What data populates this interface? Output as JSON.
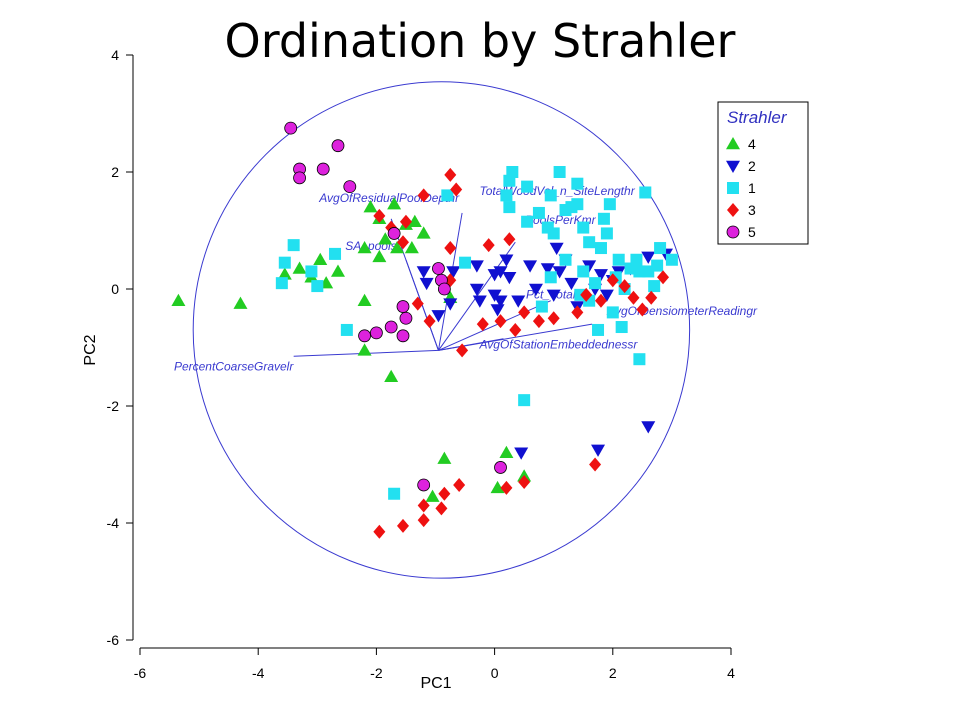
{
  "chart_data": {
    "type": "scatter",
    "title": "Ordination by Strahler",
    "xlabel": "PC1",
    "ylabel": "PC2",
    "xlim": [
      -6,
      4
    ],
    "ylim": [
      -6,
      4
    ],
    "x_ticks": [
      "-6",
      "-4",
      "-2",
      "0",
      "2",
      "4"
    ],
    "y_ticks": [
      "-6",
      "-4",
      "-2",
      "0",
      "2",
      "4"
    ],
    "grid": false,
    "legend": {
      "title": "Strahler",
      "position": "top-right"
    },
    "colors": {
      "4": "#22cc22",
      "2": "#1010d0",
      "1": "#22e0f0",
      "3": "#ee1111",
      "5": "#dd22dd",
      "vectors": "#3a3ad0"
    },
    "circle": {
      "center": [
        -0.9,
        -0.7
      ],
      "radius": 4.2
    },
    "biplot_origin": [
      -0.95,
      -1.05
    ],
    "vectors": [
      {
        "name": "AvgOfResidualPoolDepthr",
        "end": [
          -1.75,
          1.2
        ]
      },
      {
        "name": "SA_pools",
        "end": [
          -1.5,
          0.5
        ]
      },
      {
        "name": "TotalWoodVol_n_SiteLengthr",
        "end": [
          -0.55,
          1.3
        ]
      },
      {
        "name": "PoolsPerKmr",
        "end": [
          0.35,
          0.8
        ]
      },
      {
        "name": "Pct_Total",
        "end": [
          0.95,
          -0.2
        ]
      },
      {
        "name": "AvgOfDensiometerReadingr",
        "end": [
          1.65,
          -0.6
        ]
      },
      {
        "name": "AvgOfStationEmbeddednessr",
        "end": [
          0.15,
          -0.85
        ]
      },
      {
        "name": "PercentCoarseGravelr",
        "end": [
          -3.4,
          -1.15
        ]
      }
    ],
    "series": [
      {
        "name": "4",
        "marker": "triangle-up",
        "points": [
          [
            -5.35,
            -0.2
          ],
          [
            -4.3,
            -0.25
          ],
          [
            -2.1,
            1.4
          ],
          [
            -1.95,
            1.2
          ],
          [
            -1.7,
            1.45
          ],
          [
            -1.5,
            1.1
          ],
          [
            -1.35,
            1.15
          ],
          [
            -2.2,
            0.7
          ],
          [
            -1.95,
            0.55
          ],
          [
            -1.85,
            0.85
          ],
          [
            -1.65,
            0.7
          ],
          [
            -1.4,
            0.7
          ],
          [
            -1.2,
            0.95
          ],
          [
            -3.55,
            0.25
          ],
          [
            -3.3,
            0.35
          ],
          [
            -3.1,
            0.2
          ],
          [
            -2.95,
            0.5
          ],
          [
            -2.85,
            0.1
          ],
          [
            -2.65,
            0.3
          ],
          [
            -2.2,
            -0.2
          ],
          [
            -2.2,
            -1.05
          ],
          [
            -1.75,
            -1.5
          ],
          [
            -0.75,
            -0.15
          ],
          [
            -0.85,
            -2.9
          ],
          [
            -1.05,
            -3.55
          ],
          [
            0.2,
            -2.8
          ],
          [
            0.5,
            -3.2
          ],
          [
            0.05,
            -3.4
          ]
        ]
      },
      {
        "name": "2",
        "marker": "triangle-down",
        "points": [
          [
            -1.2,
            0.3
          ],
          [
            -1.15,
            0.1
          ],
          [
            -0.95,
            -0.45
          ],
          [
            -0.75,
            -0.25
          ],
          [
            -0.7,
            0.3
          ],
          [
            -0.3,
            0.0
          ],
          [
            -0.3,
            0.4
          ],
          [
            -0.25,
            -0.2
          ],
          [
            0.0,
            0.25
          ],
          [
            0.0,
            -0.1
          ],
          [
            0.1,
            0.3
          ],
          [
            0.1,
            -0.2
          ],
          [
            0.05,
            -0.35
          ],
          [
            0.2,
            0.5
          ],
          [
            0.25,
            0.2
          ],
          [
            0.4,
            -0.2
          ],
          [
            0.6,
            0.4
          ],
          [
            0.7,
            0.0
          ],
          [
            0.9,
            0.35
          ],
          [
            1.0,
            -0.1
          ],
          [
            1.05,
            0.7
          ],
          [
            1.1,
            0.3
          ],
          [
            1.2,
            0.5
          ],
          [
            1.3,
            0.1
          ],
          [
            1.4,
            -0.3
          ],
          [
            1.6,
            0.4
          ],
          [
            1.7,
            0.0
          ],
          [
            1.8,
            0.25
          ],
          [
            1.9,
            -0.1
          ],
          [
            2.0,
            0.15
          ],
          [
            2.1,
            0.3
          ],
          [
            2.3,
            0.35
          ],
          [
            2.6,
            0.55
          ],
          [
            2.9,
            0.6
          ],
          [
            0.45,
            -2.8
          ],
          [
            1.75,
            -2.75
          ],
          [
            2.6,
            -2.35
          ]
        ]
      },
      {
        "name": "1",
        "marker": "square",
        "points": [
          [
            -3.1,
            0.3
          ],
          [
            -3.55,
            0.45
          ],
          [
            -3.6,
            0.1
          ],
          [
            -3.4,
            0.75
          ],
          [
            -3.0,
            0.05
          ],
          [
            -2.7,
            0.6
          ],
          [
            -2.5,
            -0.7
          ],
          [
            -0.8,
            1.6
          ],
          [
            -0.5,
            0.45
          ],
          [
            0.2,
            1.6
          ],
          [
            0.25,
            1.85
          ],
          [
            0.3,
            2.0
          ],
          [
            0.25,
            1.4
          ],
          [
            0.55,
            1.15
          ],
          [
            0.55,
            1.75
          ],
          [
            0.75,
            1.3
          ],
          [
            0.9,
            1.05
          ],
          [
            0.95,
            1.6
          ],
          [
            1.0,
            0.95
          ],
          [
            1.1,
            2.0
          ],
          [
            1.2,
            1.35
          ],
          [
            1.3,
            1.4
          ],
          [
            1.4,
            1.8
          ],
          [
            1.4,
            1.45
          ],
          [
            1.5,
            1.05
          ],
          [
            1.6,
            0.8
          ],
          [
            1.8,
            0.7
          ],
          [
            1.85,
            1.2
          ],
          [
            1.95,
            1.45
          ],
          [
            1.9,
            0.95
          ],
          [
            2.05,
            0.2
          ],
          [
            2.1,
            0.5
          ],
          [
            2.2,
            0.0
          ],
          [
            2.3,
            0.35
          ],
          [
            2.4,
            0.5
          ],
          [
            2.45,
            0.3
          ],
          [
            2.55,
            1.65
          ],
          [
            2.6,
            0.3
          ],
          [
            2.7,
            0.05
          ],
          [
            2.75,
            0.4
          ],
          [
            2.8,
            0.7
          ],
          [
            3.0,
            0.5
          ],
          [
            1.7,
            0.1
          ],
          [
            1.6,
            -0.2
          ],
          [
            1.5,
            0.3
          ],
          [
            1.45,
            -0.1
          ],
          [
            1.75,
            -0.7
          ],
          [
            2.0,
            -0.4
          ],
          [
            2.15,
            -0.65
          ],
          [
            2.45,
            -1.2
          ],
          [
            0.5,
            -1.9
          ],
          [
            -1.7,
            -3.5
          ],
          [
            1.2,
            0.5
          ],
          [
            0.8,
            -0.3
          ],
          [
            0.95,
            0.2
          ]
        ]
      },
      {
        "name": "3",
        "marker": "diamond",
        "points": [
          [
            -0.75,
            1.95
          ],
          [
            -0.65,
            1.7
          ],
          [
            -1.2,
            1.6
          ],
          [
            -1.95,
            1.25
          ],
          [
            -1.75,
            1.05
          ],
          [
            -1.5,
            1.15
          ],
          [
            -1.55,
            0.8
          ],
          [
            -0.75,
            0.7
          ],
          [
            -0.1,
            0.75
          ],
          [
            0.25,
            0.85
          ],
          [
            -0.75,
            0.15
          ],
          [
            -1.3,
            -0.25
          ],
          [
            -1.1,
            -0.55
          ],
          [
            -0.55,
            -1.05
          ],
          [
            -0.2,
            -0.6
          ],
          [
            0.1,
            -0.55
          ],
          [
            0.35,
            -0.7
          ],
          [
            0.5,
            -0.4
          ],
          [
            0.75,
            -0.55
          ],
          [
            1.0,
            -0.5
          ],
          [
            1.4,
            -0.4
          ],
          [
            1.55,
            -0.1
          ],
          [
            1.8,
            -0.2
          ],
          [
            2.0,
            0.15
          ],
          [
            2.2,
            0.05
          ],
          [
            2.35,
            -0.15
          ],
          [
            2.5,
            -0.35
          ],
          [
            2.65,
            -0.15
          ],
          [
            2.85,
            0.2
          ],
          [
            1.7,
            -3.0
          ],
          [
            -1.95,
            -4.15
          ],
          [
            -1.55,
            -4.05
          ],
          [
            -1.2,
            -3.7
          ],
          [
            -1.2,
            -3.95
          ],
          [
            -0.9,
            -3.75
          ],
          [
            -0.85,
            -3.5
          ],
          [
            -0.6,
            -3.35
          ],
          [
            0.2,
            -3.4
          ],
          [
            0.5,
            -3.3
          ]
        ]
      },
      {
        "name": "5",
        "marker": "circle",
        "points": [
          [
            -3.45,
            2.75
          ],
          [
            -3.3,
            2.05
          ],
          [
            -3.3,
            1.9
          ],
          [
            -2.9,
            2.05
          ],
          [
            -2.65,
            2.45
          ],
          [
            -2.45,
            1.75
          ],
          [
            -2.2,
            -0.8
          ],
          [
            -2.0,
            -0.75
          ],
          [
            -1.75,
            -0.65
          ],
          [
            -1.55,
            -0.8
          ],
          [
            -1.5,
            -0.5
          ],
          [
            -1.55,
            -0.3
          ],
          [
            -1.7,
            0.95
          ],
          [
            -0.95,
            0.35
          ],
          [
            -0.9,
            0.15
          ],
          [
            -0.85,
            0.0
          ],
          [
            -1.2,
            -3.35
          ],
          [
            0.1,
            -3.05
          ]
        ]
      }
    ]
  }
}
